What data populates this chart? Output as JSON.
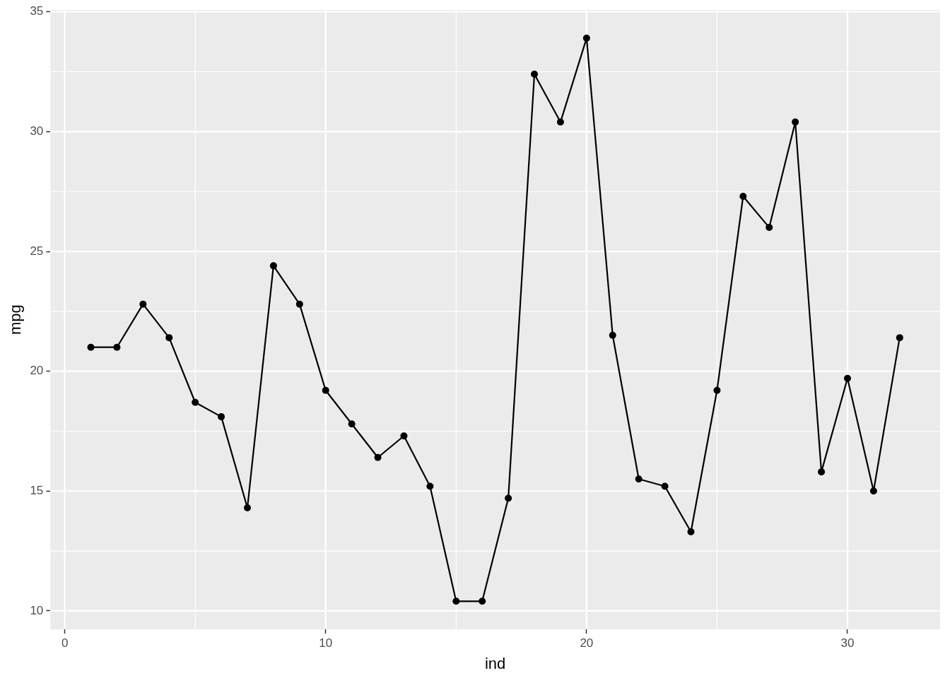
{
  "chart_data": {
    "type": "line",
    "xlabel": "ind",
    "ylabel": "mpg",
    "x": [
      1,
      2,
      3,
      4,
      5,
      6,
      7,
      8,
      9,
      10,
      11,
      12,
      13,
      14,
      15,
      16,
      17,
      18,
      19,
      20,
      21,
      22,
      23,
      24,
      25,
      26,
      27,
      28,
      29,
      30,
      31,
      32
    ],
    "series": [
      {
        "color": "#000000",
        "values": [
          21.0,
          21.0,
          22.8,
          21.4,
          18.7,
          18.1,
          14.3,
          24.4,
          22.8,
          19.2,
          17.8,
          16.4,
          17.3,
          15.2,
          10.4,
          10.4,
          14.7,
          32.4,
          30.4,
          33.9,
          21.5,
          15.5,
          15.2,
          13.3,
          19.2,
          27.3,
          26.0,
          30.4,
          15.8,
          19.7,
          15.0,
          21.4
        ]
      }
    ],
    "xlim": [
      -0.55,
      33.55
    ],
    "xticks": [
      0,
      10,
      20,
      30
    ],
    "ylim": [
      9.225,
      35.075
    ],
    "yticks": [
      10,
      15,
      20,
      25,
      30,
      35
    ],
    "grid": true,
    "marker": "circle",
    "line_style": "solid",
    "legend": false
  }
}
